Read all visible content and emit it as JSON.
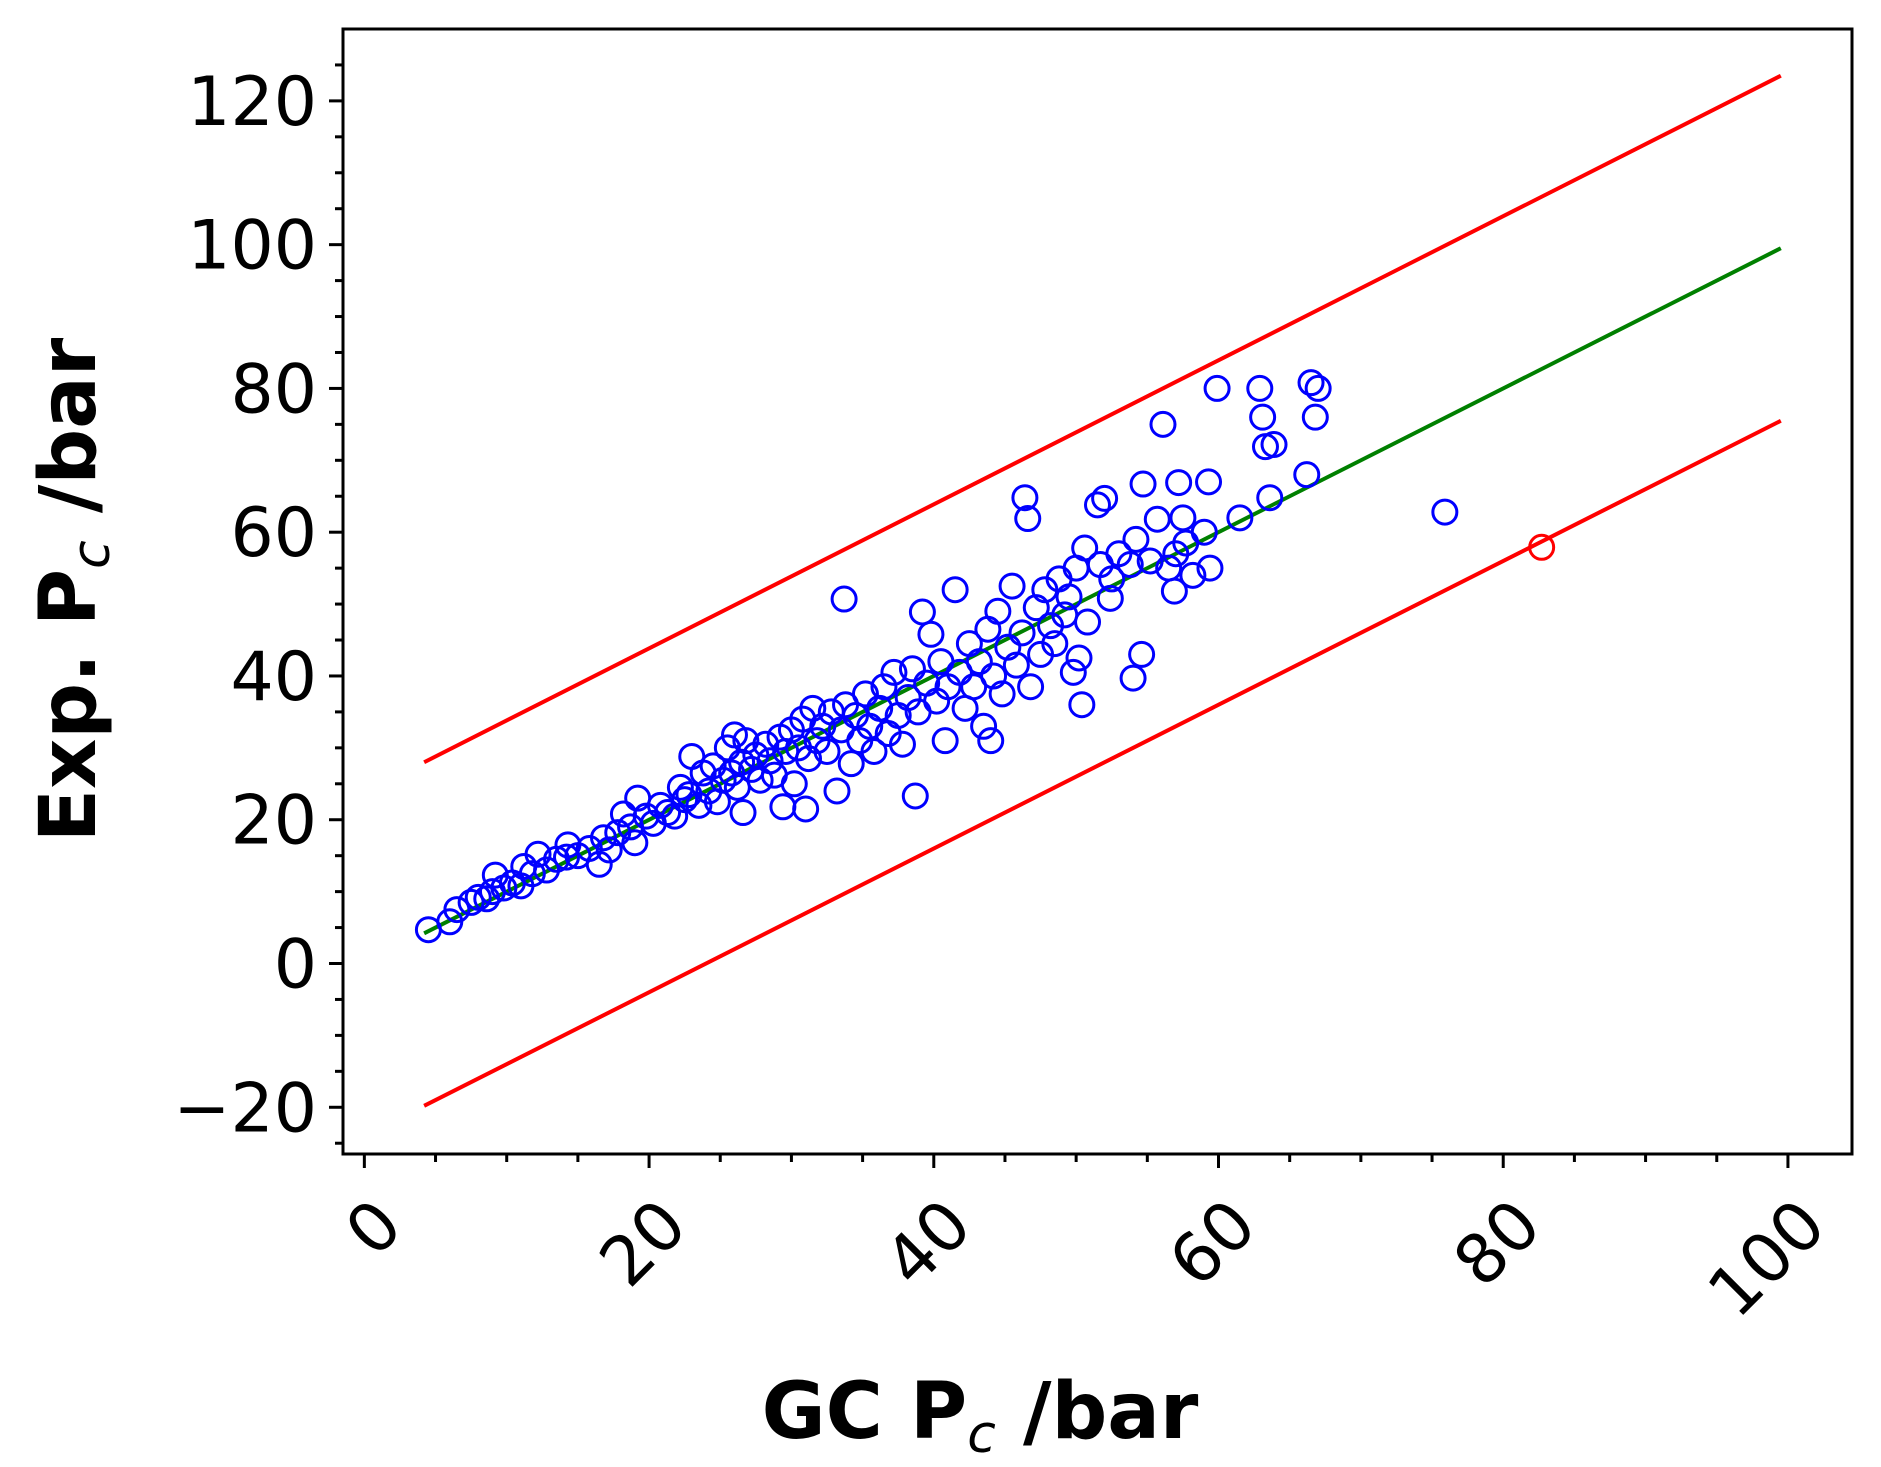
{
  "chart_data": {
    "type": "scatter",
    "title": "",
    "xlabel": {
      "main": "GC P",
      "sub": "c",
      "suffix": " /bar"
    },
    "ylabel": {
      "main": "Exp. P",
      "sub": "c",
      "suffix": " /bar"
    },
    "xlim": [
      -1.5,
      104.5
    ],
    "ylim": [
      -26.5,
      130
    ],
    "x_ticks": [
      0,
      20,
      40,
      60,
      80,
      100
    ],
    "x_tick_labels": [
      "0",
      "20",
      "40",
      "60",
      "80",
      "100"
    ],
    "y_ticks": [
      -20,
      0,
      20,
      40,
      60,
      80,
      100,
      120
    ],
    "y_tick_labels": [
      "−20",
      "0",
      "20",
      "40",
      "60",
      "80",
      "100",
      "120"
    ],
    "grid": false,
    "legend": "none",
    "colors": {
      "points": "#0000ff",
      "parity_line": "#008000",
      "bound_lines": "#ff0000",
      "outlier_point": "#ff0000"
    },
    "lines": [
      {
        "role": "parity",
        "color": "#008000",
        "x": [
          4.2,
          99.5
        ],
        "y": [
          4.2,
          99.5
        ]
      },
      {
        "role": "upper-bound",
        "color": "#ff0000",
        "x": [
          4.2,
          99.5
        ],
        "y": [
          28,
          123.5
        ]
      },
      {
        "role": "lower-bound",
        "color": "#ff0000",
        "x": [
          4.2,
          99.5
        ],
        "y": [
          -19.8,
          75.5
        ]
      }
    ],
    "outlier_points": [
      {
        "x": 82.7,
        "y": 57.9
      }
    ],
    "points": [
      [
        4.5,
        4.7
      ],
      [
        6.0,
        5.8
      ],
      [
        6.5,
        7.5
      ],
      [
        7.5,
        8.5
      ],
      [
        8.0,
        9.2
      ],
      [
        8.6,
        9.0
      ],
      [
        9.0,
        10.0
      ],
      [
        9.2,
        12.3
      ],
      [
        9.8,
        10.5
      ],
      [
        10.4,
        11.2
      ],
      [
        11.0,
        10.8
      ],
      [
        11.2,
        13.5
      ],
      [
        11.8,
        12.5
      ],
      [
        12.2,
        15.2
      ],
      [
        12.8,
        13.0
      ],
      [
        13.5,
        14.5
      ],
      [
        14.2,
        14.8
      ],
      [
        14.3,
        16.5
      ],
      [
        15.0,
        15.0
      ],
      [
        15.8,
        16.0
      ],
      [
        16.5,
        13.8
      ],
      [
        16.8,
        17.5
      ],
      [
        17.2,
        15.8
      ],
      [
        17.8,
        18.2
      ],
      [
        18.2,
        20.8
      ],
      [
        18.7,
        19.0
      ],
      [
        19.0,
        16.8
      ],
      [
        19.2,
        23.0
      ],
      [
        19.8,
        20.5
      ],
      [
        20.3,
        19.5
      ],
      [
        20.8,
        22.0
      ],
      [
        21.3,
        21.0
      ],
      [
        21.8,
        20.5
      ],
      [
        22.2,
        24.5
      ],
      [
        22.5,
        22.8
      ],
      [
        22.8,
        23.5
      ],
      [
        23.0,
        28.8
      ],
      [
        23.5,
        22.0
      ],
      [
        23.8,
        26.5
      ],
      [
        24.2,
        24.0
      ],
      [
        24.5,
        27.5
      ],
      [
        24.8,
        22.5
      ],
      [
        25.2,
        25.5
      ],
      [
        25.5,
        30.0
      ],
      [
        25.8,
        26.5
      ],
      [
        26.0,
        31.8
      ],
      [
        26.2,
        24.5
      ],
      [
        26.5,
        28.0
      ],
      [
        26.6,
        21.0
      ],
      [
        26.8,
        31.0
      ],
      [
        27.2,
        27.0
      ],
      [
        27.5,
        29.0
      ],
      [
        27.8,
        25.5
      ],
      [
        28.2,
        30.5
      ],
      [
        28.5,
        28.2
      ],
      [
        28.8,
        26.2
      ],
      [
        29.2,
        31.5
      ],
      [
        29.4,
        21.8
      ],
      [
        29.6,
        29.5
      ],
      [
        30.0,
        32.5
      ],
      [
        30.2,
        25.0
      ],
      [
        30.5,
        30.0
      ],
      [
        30.8,
        34.0
      ],
      [
        31.0,
        21.5
      ],
      [
        31.2,
        28.5
      ],
      [
        31.5,
        35.5
      ],
      [
        31.8,
        31.0
      ],
      [
        32.2,
        33.0
      ],
      [
        32.5,
        29.5
      ],
      [
        32.8,
        35.0
      ],
      [
        33.2,
        24.0
      ],
      [
        33.5,
        32.5
      ],
      [
        33.8,
        36.0
      ],
      [
        33.7,
        50.7
      ],
      [
        34.2,
        27.8
      ],
      [
        34.5,
        34.5
      ],
      [
        34.8,
        31.0
      ],
      [
        35.2,
        37.5
      ],
      [
        35.5,
        33.0
      ],
      [
        35.8,
        29.5
      ],
      [
        36.2,
        35.5
      ],
      [
        36.5,
        38.5
      ],
      [
        36.8,
        32.0
      ],
      [
        37.2,
        40.5
      ],
      [
        37.5,
        34.5
      ],
      [
        37.8,
        30.5
      ],
      [
        38.2,
        37.0
      ],
      [
        38.5,
        41.0
      ],
      [
        38.7,
        23.3
      ],
      [
        38.9,
        35.0
      ],
      [
        39.2,
        48.9
      ],
      [
        39.5,
        39.0
      ],
      [
        39.8,
        45.8
      ],
      [
        40.2,
        36.5
      ],
      [
        40.5,
        42.0
      ],
      [
        40.8,
        31.0
      ],
      [
        41.0,
        38.5
      ],
      [
        41.5,
        52.0
      ],
      [
        41.8,
        40.5
      ],
      [
        42.2,
        35.5
      ],
      [
        42.5,
        44.5
      ],
      [
        42.8,
        38.5
      ],
      [
        43.2,
        42.0
      ],
      [
        43.5,
        33.0
      ],
      [
        43.8,
        46.5
      ],
      [
        44.0,
        31.0
      ],
      [
        44.2,
        40.0
      ],
      [
        44.5,
        49.0
      ],
      [
        44.8,
        37.5
      ],
      [
        45.2,
        44.0
      ],
      [
        45.5,
        52.5
      ],
      [
        45.8,
        41.5
      ],
      [
        46.2,
        46.0
      ],
      [
        46.4,
        64.8
      ],
      [
        46.6,
        61.9
      ],
      [
        46.8,
        38.5
      ],
      [
        47.2,
        49.5
      ],
      [
        47.5,
        43.0
      ],
      [
        47.8,
        52.0
      ],
      [
        48.2,
        47.0
      ],
      [
        48.5,
        44.5
      ],
      [
        48.8,
        53.5
      ],
      [
        49.2,
        48.5
      ],
      [
        49.5,
        51.0
      ],
      [
        49.8,
        40.5
      ],
      [
        50.0,
        55.0
      ],
      [
        50.2,
        42.5
      ],
      [
        50.4,
        36.0
      ],
      [
        50.6,
        57.8
      ],
      [
        50.8,
        47.5
      ],
      [
        51.5,
        63.8
      ],
      [
        51.7,
        55.5
      ],
      [
        52.0,
        64.7
      ],
      [
        52.4,
        50.8
      ],
      [
        52.5,
        53.5
      ],
      [
        53.0,
        57.0
      ],
      [
        53.8,
        55.5
      ],
      [
        54.0,
        39.7
      ],
      [
        54.2,
        59.0
      ],
      [
        54.6,
        43.0
      ],
      [
        54.7,
        66.7
      ],
      [
        55.2,
        56.0
      ],
      [
        55.7,
        61.8
      ],
      [
        56.1,
        75.0
      ],
      [
        56.5,
        55.0
      ],
      [
        56.9,
        51.8
      ],
      [
        57.0,
        57.0
      ],
      [
        57.2,
        66.9
      ],
      [
        57.5,
        62.0
      ],
      [
        57.7,
        58.5
      ],
      [
        58.2,
        54.0
      ],
      [
        59.0,
        60.0
      ],
      [
        59.3,
        67.0
      ],
      [
        59.4,
        55.0
      ],
      [
        59.9,
        80.0
      ],
      [
        61.5,
        62.0
      ],
      [
        62.9,
        80.0
      ],
      [
        63.1,
        76.0
      ],
      [
        63.3,
        71.9
      ],
      [
        63.6,
        64.8
      ],
      [
        63.9,
        72.2
      ],
      [
        66.2,
        68.0
      ],
      [
        66.5,
        80.8
      ],
      [
        66.8,
        76.0
      ],
      [
        67.0,
        80.0
      ],
      [
        75.9,
        62.8
      ]
    ]
  }
}
